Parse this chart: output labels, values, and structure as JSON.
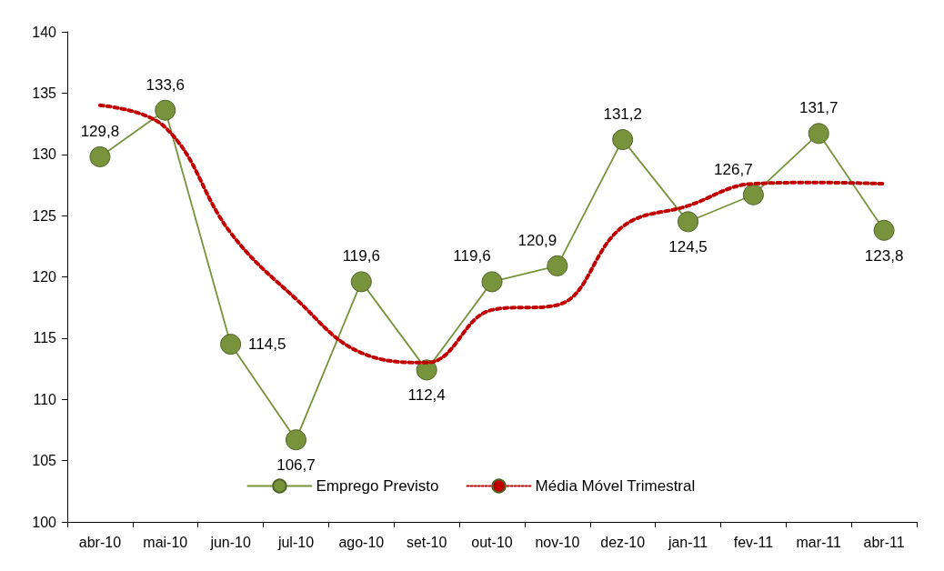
{
  "chart_data": {
    "type": "line",
    "categories": [
      "abr-10",
      "mai-10",
      "jun-10",
      "jul-10",
      "ago-10",
      "set-10",
      "out-10",
      "nov-10",
      "dez-10",
      "jan-11",
      "fev-11",
      "mar-11",
      "abr-11"
    ],
    "series": [
      {
        "name": "Emprego Previsto",
        "color": "#77933c",
        "marker": "circle",
        "line_style": "solid",
        "values": [
          129.8,
          133.6,
          114.5,
          106.7,
          119.6,
          112.4,
          119.6,
          120.9,
          131.2,
          124.5,
          126.7,
          131.7,
          123.8
        ],
        "value_labels": [
          "129,8",
          "133,6",
          "114,5",
          "106,7",
          "119,6",
          "112,4",
          "119,6",
          "120,9",
          "131,2",
          "124,5",
          "126,7",
          "131,7",
          "123,8"
        ]
      },
      {
        "name": "Média Móvel Trimestral",
        "color": "#c00000",
        "marker": "none",
        "line_style": "dotted",
        "values": [
          134.0,
          132.2,
          123.6,
          118.2,
          113.8,
          113.0,
          117.3,
          117.7,
          124.1,
          125.8,
          127.6,
          127.7,
          127.6
        ]
      }
    ],
    "ylim": [
      100,
      140
    ],
    "yticks": [
      100,
      105,
      110,
      115,
      120,
      125,
      130,
      135,
      140
    ],
    "grid": false,
    "legend": "bottom"
  }
}
